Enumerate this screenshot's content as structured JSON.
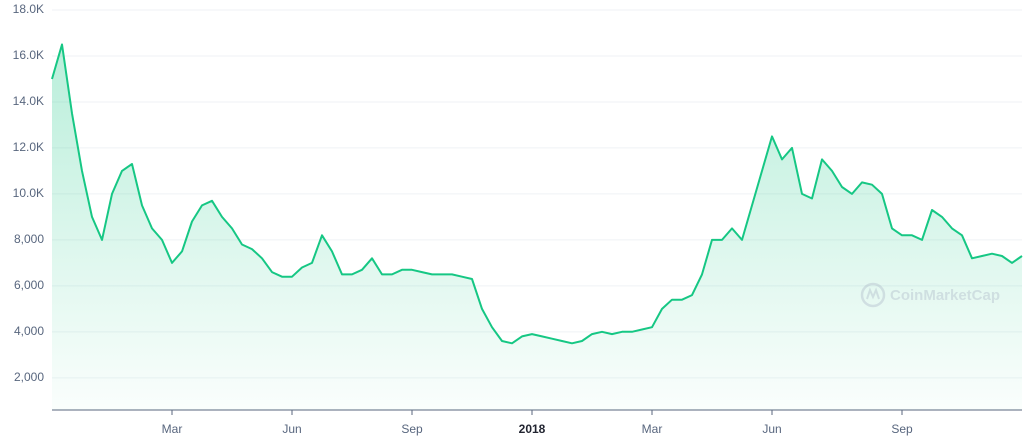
{
  "chart_data": {
    "type": "line",
    "categories": [
      null,
      null,
      null,
      null,
      null,
      null,
      null,
      null,
      null,
      null,
      null,
      null,
      "Mar",
      null,
      null,
      null,
      null,
      null,
      null,
      null,
      null,
      null,
      null,
      null,
      "Jun",
      null,
      null,
      null,
      null,
      null,
      null,
      null,
      null,
      null,
      null,
      null,
      "Sep",
      null,
      null,
      null,
      null,
      null,
      null,
      null,
      null,
      null,
      null,
      null,
      "2018",
      null,
      null,
      null,
      null,
      null,
      null,
      null,
      null,
      null,
      null,
      null,
      "Mar",
      null,
      null,
      null,
      null,
      null,
      null,
      null,
      null,
      null,
      null,
      null,
      "Jun",
      null,
      null,
      null,
      null,
      null,
      null,
      null,
      null,
      null,
      null,
      null,
      null,
      "Sep",
      null,
      null,
      null,
      null,
      null,
      null,
      null,
      null,
      null,
      null,
      null,
      null
    ],
    "values": [
      15000,
      16500,
      13500,
      11000,
      9000,
      8000,
      10000,
      11000,
      11300,
      9500,
      8500,
      8000,
      7000,
      7500,
      8800,
      9500,
      9700,
      9000,
      8500,
      7800,
      7600,
      7200,
      6600,
      6400,
      6400,
      6800,
      7000,
      8200,
      7500,
      6500,
      6500,
      6700,
      7200,
      6500,
      6500,
      6700,
      6700,
      6600,
      6500,
      6500,
      6500,
      6400,
      6300,
      5000,
      4200,
      3600,
      3500,
      3800,
      3900,
      3800,
      3700,
      3600,
      3500,
      3600,
      3900,
      4000,
      3900,
      4000,
      4000,
      4100,
      4200,
      5000,
      5400,
      5400,
      5600,
      6500,
      8000,
      8000,
      8500,
      8000,
      9500,
      11000,
      12500,
      11500,
      12000,
      10000,
      9800,
      11500,
      11000,
      10300,
      10000,
      10500,
      10400,
      10000,
      8500,
      8200,
      8200,
      8000,
      9300,
      9000,
      8500,
      8200,
      7200,
      7300,
      7400,
      7300,
      7000,
      7300
    ],
    "color": "#16c784",
    "ylim": [
      600,
      18000
    ],
    "yticks": [
      {
        "value": 2000,
        "label": "2,000"
      },
      {
        "value": 4000,
        "label": "4,000"
      },
      {
        "value": 6000,
        "label": "6,000"
      },
      {
        "value": 8000,
        "label": "8,000"
      },
      {
        "value": 10000,
        "label": "10.0K"
      },
      {
        "value": 12000,
        "label": "12.0K"
      },
      {
        "value": 14000,
        "label": "14.0K"
      },
      {
        "value": 16000,
        "label": "16.0K"
      },
      {
        "value": 18000,
        "label": "18.0K"
      }
    ],
    "grid": true,
    "watermark": "CoinMarketCap"
  }
}
